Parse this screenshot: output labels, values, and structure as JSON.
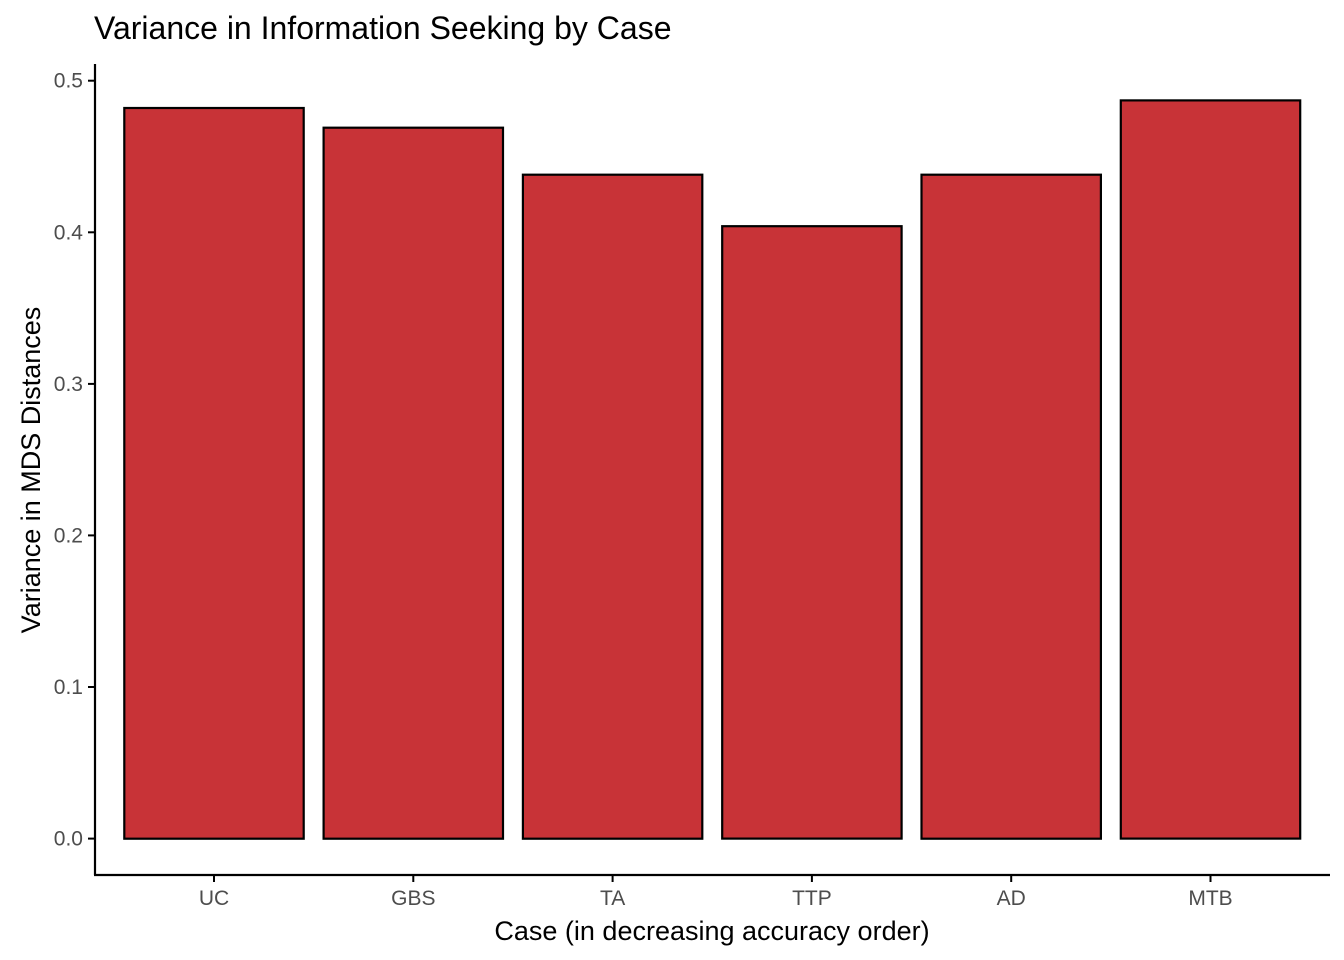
{
  "chart_data": {
    "type": "bar",
    "title": "Variance in Information Seeking by Case",
    "xlabel": "Case (in decreasing accuracy order)",
    "ylabel": "Variance in MDS Distances",
    "categories": [
      "UC",
      "GBS",
      "TA",
      "TTP",
      "AD",
      "MTB"
    ],
    "values": [
      0.482,
      0.469,
      0.438,
      0.404,
      0.438,
      0.487
    ],
    "ylim": [
      -0.024,
      0.511
    ],
    "yticks": [
      0.0,
      0.1,
      0.2,
      0.3,
      0.4,
      0.5
    ],
    "ytick_labels": [
      "0.0",
      "0.1",
      "0.2",
      "0.3",
      "0.4",
      "0.5"
    ],
    "grid": false,
    "legend": "none",
    "colors": {
      "bar_fill": "#c83337",
      "bar_outline": "#000000",
      "axis": "#000000",
      "tick_text": "#4d4d4d"
    }
  }
}
